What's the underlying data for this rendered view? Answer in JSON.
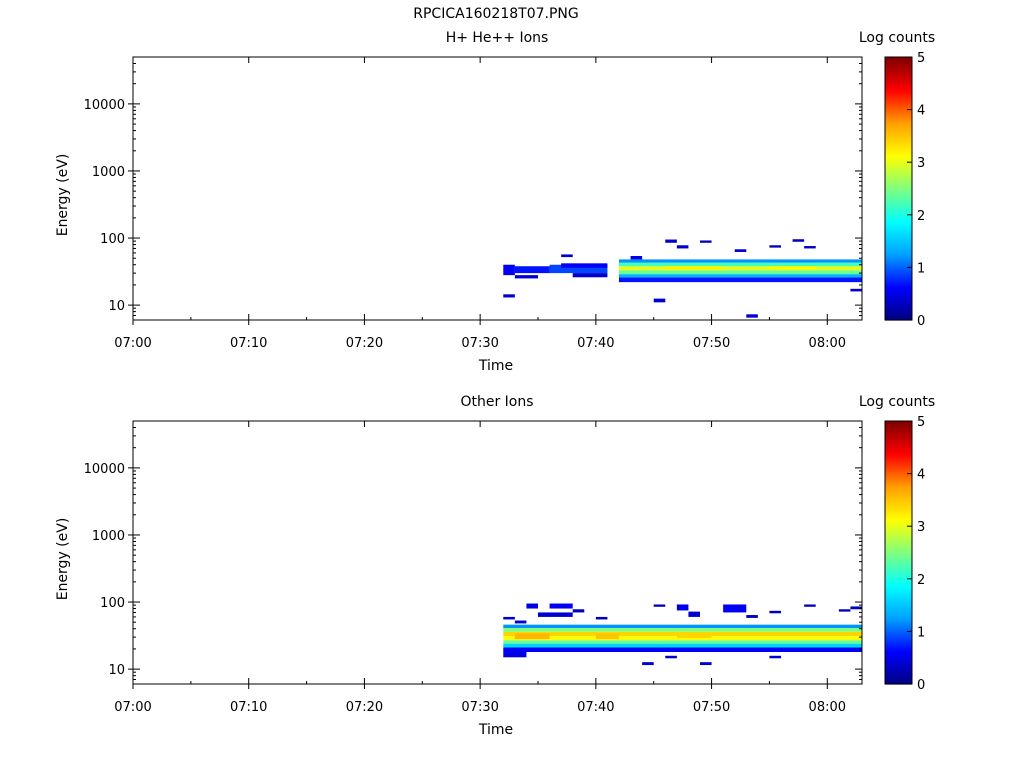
{
  "figure_title": "RPCICA160218T07.PNG",
  "colorscale": {
    "stops": [
      "#00007f",
      "#0000ff",
      "#00a0ff",
      "#00ffff",
      "#7fff7f",
      "#ffff00",
      "#ff9f00",
      "#ff0000",
      "#7f0000"
    ]
  },
  "chart_data": [
    {
      "type": "heatmap",
      "title": "H+ He++ Ions",
      "xlabel": "Time",
      "ylabel": "Energy (eV)",
      "xlim": [
        "07:00",
        "08:03"
      ],
      "ylim": [
        6,
        50000
      ],
      "yscale": "log",
      "x_ticks": [
        "07:00",
        "07:10",
        "07:20",
        "07:30",
        "07:40",
        "07:50",
        "08:00"
      ],
      "y_ticks": [
        "10",
        "100",
        "1000",
        "10000"
      ],
      "colorbar": {
        "label": "Log counts",
        "range": [
          0,
          5
        ],
        "ticks": [
          "0",
          "1",
          "2",
          "3",
          "4",
          "5"
        ]
      },
      "cells": [
        {
          "t0": "07:32",
          "t1": "07:33",
          "e0": 28,
          "e1": 40,
          "v": 0.6
        },
        {
          "t0": "07:33",
          "t1": "07:36",
          "e0": 30,
          "e1": 38,
          "v": 0.7
        },
        {
          "t0": "07:36",
          "t1": "07:41",
          "e0": 30,
          "e1": 40,
          "v": 0.9
        },
        {
          "t0": "07:37",
          "t1": "07:41",
          "e0": 36,
          "e1": 42,
          "v": 0.6
        },
        {
          "t0": "07:33",
          "t1": "07:35",
          "e0": 25,
          "e1": 28,
          "v": 0.4
        },
        {
          "t0": "07:38",
          "t1": "07:41",
          "e0": 26,
          "e1": 30,
          "v": 0.4
        },
        {
          "t0": "07:32",
          "t1": "07:33",
          "e0": 13,
          "e1": 14.5,
          "v": 0.4
        },
        {
          "t0": "07:37",
          "t1": "07:38",
          "e0": 52,
          "e1": 57,
          "v": 0.4
        },
        {
          "t0": "07:42",
          "t1": "08:03",
          "e0": 22,
          "e1": 26,
          "v": 0.7
        },
        {
          "t0": "07:42",
          "t1": "08:03",
          "e0": 26,
          "e1": 29,
          "v": 1.4
        },
        {
          "t0": "07:42",
          "t1": "08:03",
          "e0": 29,
          "e1": 33,
          "v": 2.4
        },
        {
          "t0": "07:42",
          "t1": "08:03",
          "e0": 33,
          "e1": 38,
          "v": 3.0
        },
        {
          "t0": "07:42",
          "t1": "08:03",
          "e0": 38,
          "e1": 43,
          "v": 2.2
        },
        {
          "t0": "07:42",
          "t1": "08:03",
          "e0": 43,
          "e1": 48,
          "v": 1.2
        },
        {
          "t0": "07:46",
          "t1": "07:51",
          "e0": 34,
          "e1": 38,
          "v": 3.2
        },
        {
          "t0": "07:55",
          "t1": "07:59",
          "e0": 34,
          "e1": 38,
          "v": 3.1
        },
        {
          "t0": "07:43",
          "t1": "07:44",
          "e0": 48,
          "e1": 54,
          "v": 0.5
        },
        {
          "t0": "07:46",
          "t1": "07:47",
          "e0": 85,
          "e1": 95,
          "v": 0.4
        },
        {
          "t0": "07:47",
          "t1": "07:48",
          "e0": 70,
          "e1": 78,
          "v": 0.4
        },
        {
          "t0": "07:49",
          "t1": "07:50",
          "e0": 85,
          "e1": 92,
          "v": 0.3
        },
        {
          "t0": "07:52",
          "t1": "07:53",
          "e0": 62,
          "e1": 68,
          "v": 0.4
        },
        {
          "t0": "07:55",
          "t1": "07:56",
          "e0": 72,
          "e1": 78,
          "v": 0.3
        },
        {
          "t0": "07:57",
          "t1": "07:58",
          "e0": 88,
          "e1": 96,
          "v": 0.3
        },
        {
          "t0": "07:58",
          "t1": "07:59",
          "e0": 70,
          "e1": 76,
          "v": 0.3
        },
        {
          "t0": "07:45",
          "t1": "07:46",
          "e0": 11,
          "e1": 12.5,
          "v": 0.4
        },
        {
          "t0": "07:53",
          "t1": "07:54",
          "e0": 6.5,
          "e1": 7.3,
          "v": 0.4
        },
        {
          "t0": "08:02",
          "t1": "08:03",
          "e0": 16,
          "e1": 17.5,
          "v": 0.4
        }
      ]
    },
    {
      "type": "heatmap",
      "title": "Other Ions",
      "xlabel": "Time",
      "ylabel": "Energy (eV)",
      "xlim": [
        "07:00",
        "08:03"
      ],
      "ylim": [
        6,
        50000
      ],
      "yscale": "log",
      "x_ticks": [
        "07:00",
        "07:10",
        "07:20",
        "07:30",
        "07:40",
        "07:50",
        "08:00"
      ],
      "y_ticks": [
        "10",
        "100",
        "1000",
        "10000"
      ],
      "colorbar": {
        "label": "Log counts",
        "range": [
          0,
          5
        ],
        "ticks": [
          "0",
          "1",
          "2",
          "3",
          "4",
          "5"
        ]
      },
      "cells": [
        {
          "t0": "07:32",
          "t1": "08:03",
          "e0": 18,
          "e1": 21,
          "v": 0.6
        },
        {
          "t0": "07:32",
          "t1": "08:03",
          "e0": 21,
          "e1": 24,
          "v": 1.6
        },
        {
          "t0": "07:32",
          "t1": "08:03",
          "e0": 24,
          "e1": 27,
          "v": 2.4
        },
        {
          "t0": "07:32",
          "t1": "08:03",
          "e0": 27,
          "e1": 31,
          "v": 3.1
        },
        {
          "t0": "07:32",
          "t1": "08:03",
          "e0": 31,
          "e1": 36,
          "v": 3.4
        },
        {
          "t0": "07:32",
          "t1": "08:03",
          "e0": 36,
          "e1": 41,
          "v": 2.5
        },
        {
          "t0": "07:32",
          "t1": "08:03",
          "e0": 41,
          "e1": 46,
          "v": 1.2
        },
        {
          "t0": "07:33",
          "t1": "07:36",
          "e0": 28,
          "e1": 34,
          "v": 3.6
        },
        {
          "t0": "07:40",
          "t1": "07:42",
          "e0": 28,
          "e1": 34,
          "v": 3.5
        },
        {
          "t0": "07:47",
          "t1": "07:50",
          "e0": 29,
          "e1": 35,
          "v": 3.4
        },
        {
          "t0": "07:32",
          "t1": "07:34",
          "e0": 15,
          "e1": 18,
          "v": 0.5
        },
        {
          "t0": "07:32",
          "t1": "07:33",
          "e0": 55,
          "e1": 60,
          "v": 0.4
        },
        {
          "t0": "07:33",
          "t1": "07:34",
          "e0": 48,
          "e1": 53,
          "v": 0.4
        },
        {
          "t0": "07:34",
          "t1": "07:35",
          "e0": 80,
          "e1": 95,
          "v": 0.5
        },
        {
          "t0": "07:36",
          "t1": "07:38",
          "e0": 80,
          "e1": 95,
          "v": 0.6
        },
        {
          "t0": "07:35",
          "t1": "07:38",
          "e0": 60,
          "e1": 70,
          "v": 0.4
        },
        {
          "t0": "07:38",
          "t1": "07:39",
          "e0": 70,
          "e1": 78,
          "v": 0.3
        },
        {
          "t0": "07:40",
          "t1": "07:41",
          "e0": 55,
          "e1": 60,
          "v": 0.3
        },
        {
          "t0": "07:45",
          "t1": "07:46",
          "e0": 85,
          "e1": 92,
          "v": 0.3
        },
        {
          "t0": "07:47",
          "t1": "07:48",
          "e0": 75,
          "e1": 92,
          "v": 0.5
        },
        {
          "t0": "07:48",
          "t1": "07:49",
          "e0": 60,
          "e1": 72,
          "v": 0.4
        },
        {
          "t0": "07:51",
          "t1": "07:53",
          "e0": 70,
          "e1": 92,
          "v": 0.6
        },
        {
          "t0": "07:53",
          "t1": "07:54",
          "e0": 58,
          "e1": 64,
          "v": 0.3
        },
        {
          "t0": "07:55",
          "t1": "07:56",
          "e0": 68,
          "e1": 74,
          "v": 0.3
        },
        {
          "t0": "07:58",
          "t1": "07:59",
          "e0": 85,
          "e1": 92,
          "v": 0.3
        },
        {
          "t0": "08:01",
          "t1": "08:02",
          "e0": 72,
          "e1": 78,
          "v": 0.3
        },
        {
          "t0": "08:02",
          "t1": "08:03",
          "e0": 78,
          "e1": 86,
          "v": 0.3
        },
        {
          "t0": "07:44",
          "t1": "07:45",
          "e0": 11.5,
          "e1": 12.7,
          "v": 0.4
        },
        {
          "t0": "07:49",
          "t1": "07:50",
          "e0": 11.5,
          "e1": 12.7,
          "v": 0.4
        },
        {
          "t0": "07:46",
          "t1": "07:47",
          "e0": 14.5,
          "e1": 15.8,
          "v": 0.4
        },
        {
          "t0": "07:55",
          "t1": "07:56",
          "e0": 14.5,
          "e1": 15.8,
          "v": 0.4
        }
      ]
    }
  ]
}
